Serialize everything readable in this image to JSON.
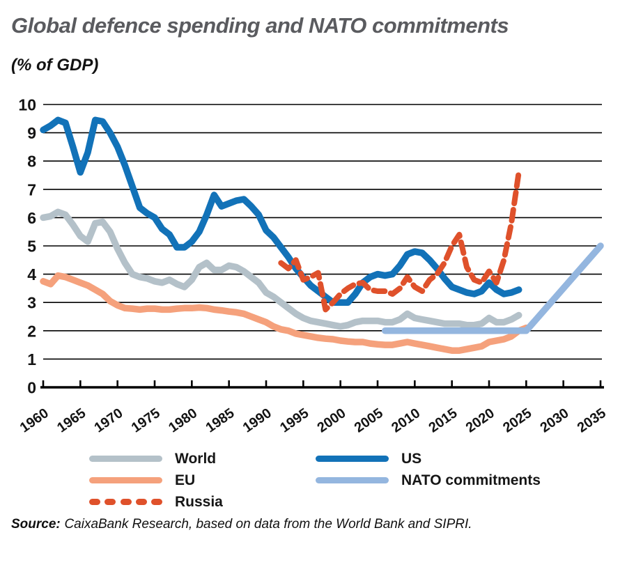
{
  "header": {
    "title": "Global defence spending and NATO commitments",
    "subtitle": "(% of GDP)"
  },
  "source": {
    "prefix": "Source:",
    "text": "CaixaBank Research, based on data from the World Bank and SIPRI."
  },
  "legend": {
    "columns": [
      {
        "items": [
          {
            "label": "World",
            "color": "#b4c1c9",
            "dashed": false
          },
          {
            "label": "EU",
            "color": "#f5a17c",
            "dashed": false
          },
          {
            "label": "Russia",
            "color": "#df512b",
            "dashed": true
          }
        ]
      },
      {
        "items": [
          {
            "label": "US",
            "color": "#1272b8",
            "dashed": false
          },
          {
            "label": "NATO commitments",
            "color": "#94b6df",
            "dashed": false
          }
        ]
      }
    ]
  },
  "chart_data": {
    "type": "line",
    "title": "Global defence spending and NATO commitments",
    "subtitle": "(% of GDP)",
    "xlabel": "",
    "ylabel": "% of GDP",
    "xlim": [
      1960,
      2035
    ],
    "ylim": [
      0,
      10
    ],
    "x_ticks": [
      1960,
      1965,
      1970,
      1975,
      1980,
      1985,
      1990,
      1995,
      2000,
      2005,
      2010,
      2015,
      2020,
      2025,
      2030,
      2035
    ],
    "y_ticks": [
      0,
      1,
      2,
      3,
      4,
      5,
      6,
      7,
      8,
      9,
      10
    ],
    "grid": "horizontal",
    "legend_position": "bottom",
    "series": [
      {
        "name": "World",
        "color": "#b4c1c9",
        "dashed": false,
        "stroke_width": 9.5,
        "x_start": 1960,
        "values": [
          6.0,
          6.05,
          6.2,
          6.1,
          5.75,
          5.35,
          5.15,
          5.8,
          5.85,
          5.5,
          4.9,
          4.4,
          4.0,
          3.9,
          3.85,
          3.75,
          3.7,
          3.8,
          3.65,
          3.55,
          3.8,
          4.25,
          4.4,
          4.15,
          4.15,
          4.3,
          4.25,
          4.1,
          3.9,
          3.7,
          3.35,
          3.2,
          3.0,
          2.8,
          2.6,
          2.45,
          2.35,
          2.3,
          2.25,
          2.2,
          2.15,
          2.2,
          2.3,
          2.35,
          2.35,
          2.35,
          2.3,
          2.3,
          2.4,
          2.6,
          2.45,
          2.4,
          2.35,
          2.3,
          2.25,
          2.25,
          2.25,
          2.2,
          2.2,
          2.25,
          2.45,
          2.3,
          2.3,
          2.4,
          2.55
        ]
      },
      {
        "name": "EU",
        "color": "#f5a17c",
        "dashed": false,
        "stroke_width": 9.5,
        "x_start": 1960,
        "values": [
          3.75,
          3.65,
          3.95,
          3.9,
          3.8,
          3.7,
          3.6,
          3.45,
          3.3,
          3.05,
          2.9,
          2.8,
          2.78,
          2.75,
          2.78,
          2.78,
          2.75,
          2.75,
          2.78,
          2.8,
          2.8,
          2.82,
          2.8,
          2.75,
          2.72,
          2.68,
          2.65,
          2.6,
          2.5,
          2.4,
          2.3,
          2.15,
          2.05,
          2.0,
          1.9,
          1.85,
          1.8,
          1.75,
          1.72,
          1.7,
          1.65,
          1.62,
          1.6,
          1.6,
          1.55,
          1.52,
          1.5,
          1.5,
          1.55,
          1.6,
          1.55,
          1.5,
          1.45,
          1.4,
          1.35,
          1.3,
          1.3,
          1.35,
          1.4,
          1.45,
          1.6,
          1.65,
          1.7,
          1.8,
          2.0,
          2.1
        ]
      },
      {
        "name": "US",
        "color": "#1272b8",
        "dashed": false,
        "stroke_width": 9.5,
        "x_start": 1960,
        "values": [
          9.1,
          9.25,
          9.45,
          9.35,
          8.5,
          7.6,
          8.3,
          9.45,
          9.4,
          9.0,
          8.5,
          7.85,
          7.1,
          6.35,
          6.15,
          6.0,
          5.6,
          5.4,
          4.95,
          4.95,
          5.15,
          5.5,
          6.1,
          6.8,
          6.4,
          6.5,
          6.6,
          6.65,
          6.4,
          6.1,
          5.55,
          5.3,
          4.95,
          4.6,
          4.2,
          3.9,
          3.6,
          3.4,
          3.2,
          3.0,
          3.0,
          3.0,
          3.3,
          3.7,
          3.9,
          4.0,
          3.95,
          4.0,
          4.3,
          4.7,
          4.8,
          4.75,
          4.5,
          4.2,
          3.85,
          3.55,
          3.45,
          3.35,
          3.3,
          3.4,
          3.7,
          3.45,
          3.3,
          3.35,
          3.45
        ]
      },
      {
        "name": "Russia",
        "color": "#df512b",
        "dashed": true,
        "stroke_width": 8,
        "x_start": 1992,
        "values": [
          4.4,
          4.2,
          4.5,
          3.8,
          3.9,
          4.05,
          2.75,
          3.0,
          3.3,
          3.5,
          3.65,
          3.7,
          3.45,
          3.4,
          3.4,
          3.3,
          3.5,
          3.9,
          3.55,
          3.4,
          3.8,
          4.0,
          4.4,
          5.0,
          5.4,
          4.25,
          3.8,
          3.7,
          4.1,
          3.7,
          4.5,
          5.8,
          7.6
        ]
      },
      {
        "name": "NATO commitments",
        "color": "#94b6df",
        "dashed": false,
        "stroke_width": 9.5,
        "x": [
          2006,
          2025,
          2035
        ],
        "values": [
          2.0,
          2.0,
          5.0
        ]
      }
    ]
  }
}
